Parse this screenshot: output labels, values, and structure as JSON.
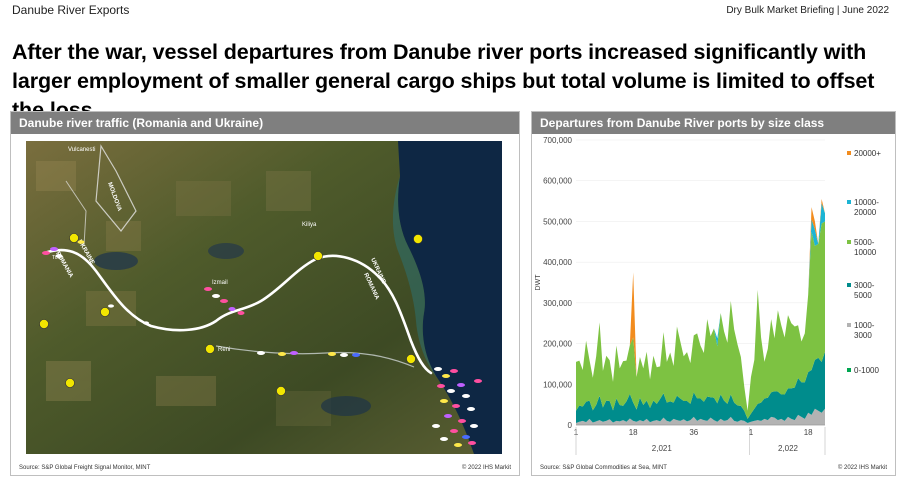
{
  "header": {
    "left_title": "Danube River Exports",
    "right_title": "Dry Bulk Market Briefing | June 2022"
  },
  "headline": "After the war, vessel departures from Danube river ports increased significantly with larger employment of smaller general cargo ships but total volume is limited to offset the loss",
  "map_panel": {
    "title": "Danube river traffic (Romania and Ukraine)",
    "source": "Source: S&P Global Freight Signal Monitor, MINT",
    "copyright": "© 2022 IHS Markit",
    "labels": {
      "vulcanesti": "Vulcanesti",
      "moldova": "MOLDOVA",
      "ukraine_west": "UKRAINE",
      "romania_west": "ROMANIA",
      "izmail": "Izmail",
      "kiliya": "Kiliya",
      "ukraine_east": "UKRAINE",
      "romania_east": "ROMANIA",
      "reni": "Reni",
      "tulcea": "Tcea"
    },
    "colors": {
      "sea": "#0e2744",
      "land": "#4a5a2c",
      "river": "#ffffff",
      "port": "#f2e600"
    }
  },
  "chart_panel": {
    "title": "Departures from Danube River ports by size class",
    "source": "Source: S&P Global Commodities at Sea, MINT",
    "copyright": "© 2022 IHS Markit"
  },
  "chart_data": {
    "type": "area",
    "stacked": true,
    "title": "Departures from Danube River ports by size class",
    "ylabel": "DWT",
    "ylim": [
      0,
      700000
    ],
    "yticks": [
      0,
      100000,
      200000,
      300000,
      400000,
      500000,
      600000,
      700000
    ],
    "ytick_labels": [
      "0",
      "100,000",
      "200,000",
      "300,000",
      "400,000",
      "500,000",
      "600,000",
      "700,000"
    ],
    "week_tick_labels": [
      {
        "week": 1,
        "label": "1"
      },
      {
        "week": 18,
        "label": "18"
      },
      {
        "week": 36,
        "label": "36"
      },
      {
        "week": 53,
        "label": "1"
      },
      {
        "week": 70,
        "label": "18"
      }
    ],
    "year_labels": [
      {
        "label": "2,021",
        "from_week": 1,
        "to_week": 52
      },
      {
        "label": "2,022",
        "from_week": 53,
        "to_week": 75
      }
    ],
    "x": [
      1,
      2,
      3,
      4,
      5,
      6,
      7,
      8,
      9,
      10,
      11,
      12,
      13,
      14,
      15,
      16,
      17,
      18,
      19,
      20,
      21,
      22,
      23,
      24,
      25,
      26,
      27,
      28,
      29,
      30,
      31,
      32,
      33,
      34,
      35,
      36,
      37,
      38,
      39,
      40,
      41,
      42,
      43,
      44,
      45,
      46,
      47,
      48,
      49,
      50,
      51,
      52,
      53,
      54,
      55,
      56,
      57,
      58,
      59,
      60,
      61,
      62,
      63,
      64,
      65,
      66,
      67,
      68,
      69,
      70,
      71,
      72,
      73,
      74,
      75
    ],
    "series": [
      {
        "name": "0-1000",
        "color": "#00a651",
        "values": [
          0,
          0,
          0,
          0,
          0,
          0,
          0,
          0,
          0,
          0,
          0,
          0,
          0,
          0,
          0,
          0,
          0,
          0,
          0,
          0,
          0,
          0,
          0,
          0,
          0,
          0,
          0,
          0,
          0,
          0,
          0,
          0,
          0,
          0,
          0,
          0,
          0,
          0,
          0,
          0,
          0,
          0,
          0,
          0,
          0,
          0,
          0,
          0,
          0,
          0,
          0,
          0,
          0,
          0,
          0,
          0,
          0,
          0,
          0,
          0,
          0,
          0,
          0,
          0,
          0,
          0,
          0,
          0,
          0,
          0,
          0,
          0,
          0,
          0,
          0
        ]
      },
      {
        "name": "1000-3000",
        "color": "#b3b3b3",
        "values": [
          5000,
          8000,
          10000,
          7000,
          15000,
          6000,
          9000,
          12000,
          8000,
          10000,
          14000,
          6000,
          10000,
          9000,
          12000,
          8000,
          16000,
          10000,
          8000,
          12000,
          9000,
          15000,
          7000,
          10000,
          12000,
          9000,
          18000,
          10000,
          8000,
          15000,
          12000,
          10000,
          14000,
          9000,
          12000,
          20000,
          10000,
          15000,
          12000,
          10000,
          18000,
          12000,
          8000,
          15000,
          10000,
          12000,
          20000,
          10000,
          8000,
          12000,
          10000,
          5000,
          8000,
          10000,
          12000,
          10000,
          15000,
          12000,
          20000,
          18000,
          12000,
          15000,
          10000,
          20000,
          15000,
          12000,
          25000,
          20000,
          15000,
          30000,
          25000,
          40000,
          35000,
          30000,
          40000
        ]
      },
      {
        "name": "3000-5000",
        "color": "#008c8c",
        "values": [
          30000,
          40000,
          35000,
          50000,
          45000,
          30000,
          40000,
          60000,
          35000,
          50000,
          45000,
          30000,
          55000,
          40000,
          35000,
          50000,
          60000,
          45000,
          30000,
          55000,
          40000,
          45000,
          35000,
          50000,
          40000,
          55000,
          60000,
          45000,
          50000,
          40000,
          60000,
          55000,
          45000,
          50000,
          40000,
          60000,
          55000,
          50000,
          45000,
          60000,
          50000,
          55000,
          45000,
          60000,
          50000,
          40000,
          55000,
          45000,
          40000,
          35000,
          25000,
          10000,
          20000,
          30000,
          40000,
          45000,
          50000,
          55000,
          60000,
          65000,
          70000,
          60000,
          65000,
          70000,
          75000,
          80000,
          90000,
          85000,
          90000,
          100000,
          110000,
          120000,
          130000,
          125000,
          140000
        ]
      },
      {
        "name": "5000-10000",
        "color": "#7dc242",
        "values": [
          120000,
          110000,
          90000,
          150000,
          100000,
          80000,
          120000,
          180000,
          90000,
          110000,
          100000,
          70000,
          130000,
          90000,
          110000,
          100000,
          120000,
          160000,
          80000,
          100000,
          90000,
          120000,
          70000,
          110000,
          90000,
          80000,
          150000,
          100000,
          120000,
          90000,
          170000,
          140000,
          110000,
          120000,
          100000,
          140000,
          160000,
          130000,
          120000,
          190000,
          150000,
          170000,
          140000,
          200000,
          170000,
          150000,
          230000,
          180000,
          150000,
          120000,
          60000,
          20000,
          90000,
          120000,
          280000,
          160000,
          90000,
          120000,
          180000,
          130000,
          200000,
          170000,
          140000,
          180000,
          160000,
          150000,
          130000,
          100000,
          120000,
          190000,
          340000,
          280000,
          280000,
          340000,
          320000
        ]
      },
      {
        "name": "10000-20000",
        "color": "#1cb4d4",
        "values": [
          0,
          0,
          0,
          0,
          0,
          0,
          0,
          0,
          0,
          0,
          0,
          0,
          0,
          0,
          0,
          0,
          0,
          0,
          0,
          0,
          0,
          0,
          0,
          0,
          0,
          0,
          0,
          0,
          0,
          0,
          0,
          0,
          0,
          0,
          0,
          0,
          0,
          0,
          0,
          0,
          0,
          0,
          20000,
          0,
          0,
          0,
          0,
          0,
          0,
          0,
          0,
          0,
          0,
          0,
          0,
          0,
          0,
          0,
          0,
          0,
          0,
          0,
          0,
          0,
          0,
          0,
          0,
          0,
          0,
          0,
          30000,
          40000,
          0,
          50000,
          20000
        ]
      },
      {
        "name": "20000+",
        "color": "#f28c1e",
        "values": [
          0,
          0,
          0,
          0,
          0,
          0,
          0,
          0,
          0,
          0,
          0,
          0,
          0,
          0,
          0,
          0,
          0,
          160000,
          0,
          0,
          0,
          0,
          0,
          0,
          0,
          0,
          0,
          0,
          0,
          0,
          0,
          0,
          0,
          0,
          0,
          0,
          0,
          0,
          0,
          0,
          0,
          0,
          0,
          0,
          0,
          0,
          0,
          0,
          0,
          0,
          0,
          0,
          0,
          0,
          0,
          0,
          0,
          0,
          0,
          0,
          0,
          0,
          0,
          0,
          0,
          0,
          0,
          0,
          0,
          0,
          30000,
          20000,
          0,
          10000,
          0
        ]
      }
    ],
    "legend_placement": "right",
    "legend": [
      {
        "lines": [
          "20000+"
        ],
        "color": "#f28c1e"
      },
      {
        "lines": [
          "10000-",
          "20000"
        ],
        "color": "#1cb4d4"
      },
      {
        "lines": [
          "5000-",
          "10000"
        ],
        "color": "#7dc242"
      },
      {
        "lines": [
          "3000-",
          "5000"
        ],
        "color": "#008c8c"
      },
      {
        "lines": [
          "1000-",
          "3000"
        ],
        "color": "#b3b3b3"
      },
      {
        "lines": [
          "0-1000"
        ],
        "color": "#00a651"
      }
    ]
  }
}
